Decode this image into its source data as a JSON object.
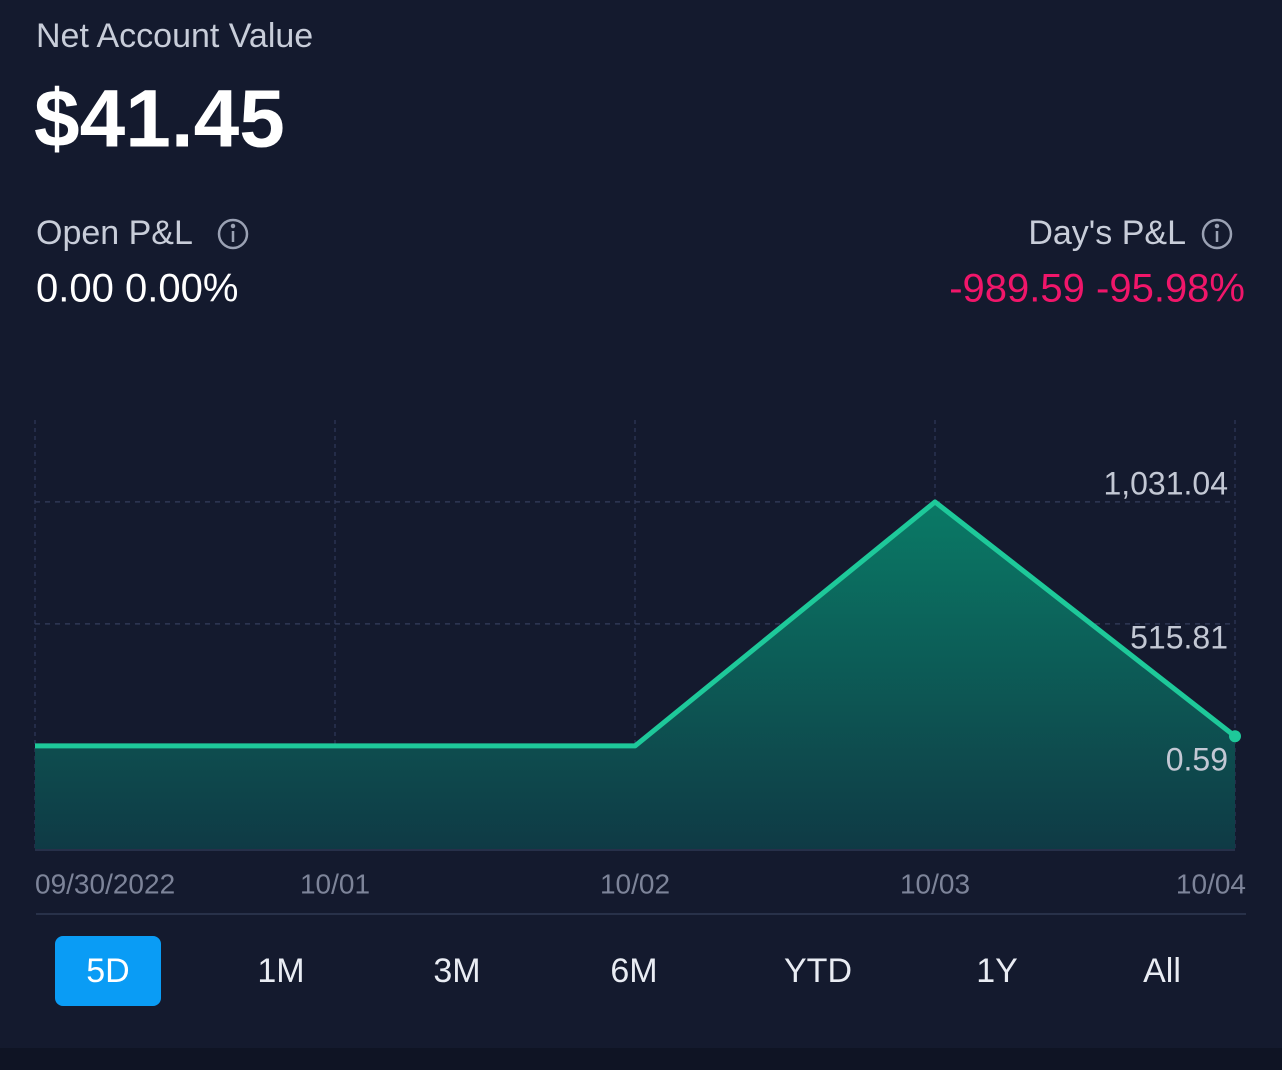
{
  "header": {
    "label": "Net Account Value",
    "value": "$41.45"
  },
  "pnl": {
    "open_label": "Open P&L",
    "open_value": "0.00 0.00%",
    "day_label": "Day's P&L",
    "day_value": "-989.59 -95.98%"
  },
  "chart_data": {
    "type": "area",
    "categories": [
      "09/30/2022",
      "10/01",
      "10/02",
      "10/03",
      "10/04"
    ],
    "values": [
      0.59,
      0.59,
      0.59,
      1031.04,
      41.45
    ],
    "color": "#1ec99a",
    "ylim": [
      -439,
      1377
    ],
    "yticks": [
      {
        "value": 1031.04,
        "label": "1,031.04"
      },
      515.81,
      0.59
    ],
    "grid": true
  },
  "ranges": {
    "items": [
      "5D",
      "1M",
      "3M",
      "6M",
      "YTD",
      "1Y",
      "All"
    ],
    "selected": 0
  }
}
